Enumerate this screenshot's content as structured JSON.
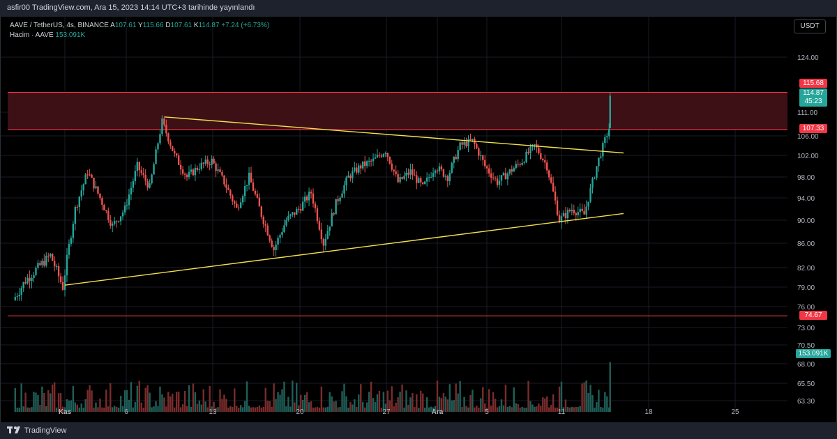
{
  "header": {
    "publisher_line": "asfir00 TradingView.com, Ara 15, 2023 14:14 UTC+3 tarihinde yayınlandı"
  },
  "legend": {
    "symbol": "AAVE / TetherUS, 4s, BINANCE",
    "o_label": "A",
    "o_value": "107.61",
    "h_label": "Y",
    "h_value": "115.66",
    "l_label": "D",
    "l_value": "107.61",
    "c_label": "K",
    "c_value": "114.87",
    "change": "+7.24 (+6.73%)",
    "volume_label": "Hacim · AAVE",
    "volume_value": "153.091K"
  },
  "currency": "USDT",
  "footer": {
    "brand": "TradingView"
  },
  "colors": {
    "up": "#26a69a",
    "down": "#ef5350",
    "zone_fill": "#3d1016",
    "level_line": "#f23645",
    "trendline": "#f4e04d",
    "grid": "#1a1d26"
  },
  "chart_data": {
    "type": "candlestick",
    "title": "AAVE / TetherUS, 4s, BINANCE",
    "price_axis": {
      "ticks": [
        "124.00",
        "111.00",
        "106.00",
        "102.00",
        "98.00",
        "94.00",
        "90.00",
        "86.00",
        "82.00",
        "79.00",
        "76.00",
        "73.00",
        "70.50",
        "68.00",
        "65.50",
        "63.30"
      ]
    },
    "time_axis": {
      "ticks": [
        "Kas",
        "6",
        "13",
        "20",
        "27",
        "Ara",
        "5",
        "11",
        "18",
        "25"
      ]
    },
    "price_labels": [
      {
        "text": "115.68",
        "color": "#f23645"
      },
      {
        "text": "114.87",
        "sub": "45:23",
        "color": "#26a69a"
      },
      {
        "text": "107.33",
        "color": "#f23645"
      },
      {
        "text": "74.67",
        "color": "#f23645"
      },
      {
        "text": "153.091K",
        "color": "#26a69a"
      }
    ],
    "resistance_zone": {
      "top": 115.68,
      "bottom": 107.33
    },
    "support_level": 74.67,
    "upper_trendline": {
      "from": {
        "time": "Kas 9",
        "price": 110
      },
      "to": {
        "time": "Ara 16",
        "price": 102.5
      }
    },
    "lower_trendline": {
      "from": {
        "time": "Kas 1",
        "price": 79.3
      },
      "to": {
        "time": "Ara 16",
        "price": 91.2
      }
    },
    "price_path": [
      [
        "Eki 28",
        77
      ],
      [
        "Eki 29",
        80
      ],
      [
        "Eki 31",
        84
      ],
      [
        "Kas 1",
        79
      ],
      [
        "Kas 2",
        92
      ],
      [
        "Kas 3",
        99
      ],
      [
        "Kas 5",
        89
      ],
      [
        "Kas 6",
        92
      ],
      [
        "Kas 7",
        100
      ],
      [
        "Kas 8",
        96
      ],
      [
        "Kas 9",
        109
      ],
      [
        "Kas 10",
        102
      ],
      [
        "Kas 11",
        98
      ],
      [
        "Kas 12",
        100
      ],
      [
        "Kas 13",
        101
      ],
      [
        "Kas 14",
        97
      ],
      [
        "Kas 15",
        92
      ],
      [
        "Kas 16",
        98
      ],
      [
        "Kas 17",
        91
      ],
      [
        "Kas 18",
        85
      ],
      [
        "Kas 19",
        90
      ],
      [
        "Kas 20",
        92
      ],
      [
        "Kas 21",
        95
      ],
      [
        "Kas 22",
        86
      ],
      [
        "Kas 23",
        93
      ],
      [
        "Kas 24",
        98
      ],
      [
        "Kas 25",
        100
      ],
      [
        "Kas 26",
        101
      ],
      [
        "Kas 27",
        103
      ],
      [
        "Kas 28",
        97
      ],
      [
        "Kas 29",
        99
      ],
      [
        "Kas 30",
        96
      ],
      [
        "Ara 1",
        100
      ],
      [
        "Ara 2",
        98
      ],
      [
        "Ara 3",
        104
      ],
      [
        "Ara 4",
        105
      ],
      [
        "Ara 5",
        100
      ],
      [
        "Ara 6",
        97
      ],
      [
        "Ara 7",
        99
      ],
      [
        "Ara 8",
        101
      ],
      [
        "Ara 9",
        104
      ],
      [
        "Ara 10",
        100
      ],
      [
        "Ara 11",
        90
      ],
      [
        "Ara 12",
        92
      ],
      [
        "Ara 13",
        91
      ],
      [
        "Ara 14",
        100
      ],
      [
        "Ara 15",
        107.61
      ],
      [
        "Ara 15",
        114.87
      ]
    ],
    "volume_last": "153.091K"
  }
}
